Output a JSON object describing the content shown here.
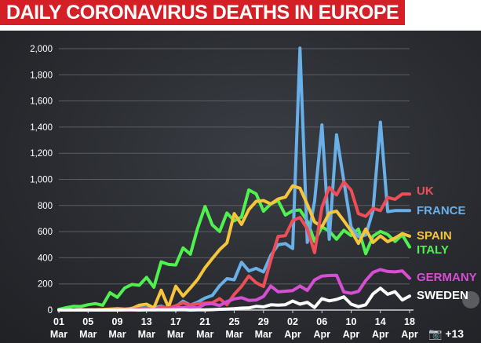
{
  "title": "DAILY CORONAVIRUS DEATHS IN EUROPE",
  "chart_data": {
    "type": "line",
    "ylim": [
      0,
      2000
    ],
    "yticks": [
      "0",
      "200",
      "400",
      "600",
      "800",
      "1,000",
      "1,200",
      "1,400",
      "1,600",
      "1,800",
      "2,000"
    ],
    "xticks": [
      {
        "day": "01",
        "month": "Mar"
      },
      {
        "day": "05",
        "month": "Mar"
      },
      {
        "day": "09",
        "month": "Mar"
      },
      {
        "day": "13",
        "month": "Mar"
      },
      {
        "day": "17",
        "month": "Mar"
      },
      {
        "day": "21",
        "month": "Mar"
      },
      {
        "day": "25",
        "month": "Mar"
      },
      {
        "day": "29",
        "month": "Mar"
      },
      {
        "day": "02",
        "month": "Apr"
      },
      {
        "day": "06",
        "month": "Apr"
      },
      {
        "day": "10",
        "month": "Apr"
      },
      {
        "day": "14",
        "month": "Apr"
      },
      {
        "day": "18",
        "month": "Apr"
      }
    ],
    "x_start": "2020-03-01",
    "x_end": "2020-04-18",
    "series": [
      {
        "name": "ITALY",
        "color": "#4ff04f",
        "values": [
          5,
          18,
          28,
          27,
          41,
          49,
          36,
          133,
          97,
          168,
          196,
          189,
          250,
          175,
          368,
          349,
          345,
          475,
          427,
          627,
          793,
          651,
          601,
          743,
          683,
          712,
          919,
          889,
          756,
          812,
          837,
          727,
          760,
          766,
          681,
          525,
          636,
          604,
          542,
          610,
          570,
          619,
          431,
          566,
          602,
          578,
          525,
          575,
          482
        ]
      },
      {
        "name": "FRANCE",
        "color": "#6ab0e8",
        "values": [
          0,
          0,
          0,
          1,
          2,
          3,
          2,
          3,
          10,
          0,
          15,
          15,
          17,
          16,
          30,
          10,
          27,
          68,
          38,
          60,
          92,
          112,
          186,
          240,
          231,
          365,
          299,
          319,
          292,
          418,
          499,
          509,
          471,
          2004,
          518,
          833,
          1417,
          541,
          1341,
          987,
          635,
          561,
          574,
          762,
          1438,
          753,
          761,
          761,
          761
        ]
      },
      {
        "name": "SPAIN",
        "color": "#f7c53b",
        "values": [
          0,
          0,
          0,
          1,
          1,
          3,
          5,
          7,
          11,
          8,
          11,
          37,
          45,
          16,
          152,
          21,
          182,
          107,
          169,
          235,
          324,
          394,
          462,
          514,
          738,
          655,
          769,
          832,
          838,
          812,
          849,
          864,
          950,
          932,
          809,
          674,
          637,
          743,
          757,
          683,
          605,
          510,
          619,
          517,
          567,
          523,
          551,
          585,
          565
        ]
      },
      {
        "name": "UK",
        "color": "#ef4d58",
        "values": [
          0,
          0,
          0,
          1,
          1,
          1,
          1,
          1,
          2,
          4,
          3,
          10,
          12,
          2,
          24,
          16,
          33,
          55,
          38,
          48,
          53,
          56,
          87,
          41,
          120,
          181,
          260,
          209,
          180,
          381,
          563,
          569,
          684,
          708,
          621,
          439,
          786,
          938,
          881,
          980,
          917,
          737,
          717,
          778,
          761,
          861,
          847,
          888,
          887
        ]
      },
      {
        "name": "GERMANY",
        "color": "#d64fd3",
        "values": [
          0,
          0,
          0,
          0,
          0,
          0,
          0,
          0,
          2,
          0,
          2,
          1,
          3,
          2,
          4,
          2,
          16,
          20,
          22,
          16,
          45,
          49,
          34,
          64,
          85,
          94,
          74,
          76,
          104,
          184,
          140,
          144,
          149,
          184,
          150,
          230,
          260,
          264,
          266,
          138,
          128,
          143,
          226,
          288,
          310,
          295,
          292,
          300,
          243
        ]
      },
      {
        "name": "SWEDEN",
        "color": "#ffffff",
        "values": [
          0,
          0,
          0,
          0,
          0,
          0,
          0,
          0,
          0,
          1,
          1,
          0,
          1,
          2,
          1,
          1,
          2,
          3,
          0,
          2,
          1,
          3,
          6,
          8,
          11,
          15,
          16,
          28,
          24,
          40,
          38,
          41,
          69,
          45,
          59,
          20,
          87,
          70,
          81,
          101,
          45,
          26,
          40,
          124,
          167,
          121,
          140,
          77,
          107
        ]
      }
    ]
  },
  "ui": {
    "photo_count": "+13"
  }
}
